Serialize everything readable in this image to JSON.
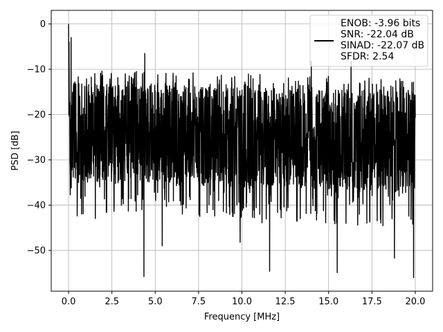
{
  "chart_data": {
    "type": "line",
    "title": "",
    "xlabel": "Frequency [MHz]",
    "ylabel": "PSD [dB]",
    "xlim": [
      -1.0,
      21.0
    ],
    "ylim": [
      -59.0,
      3.0
    ],
    "xticks": [
      0.0,
      2.5,
      5.0,
      7.5,
      10.0,
      12.5,
      15.0,
      17.5,
      20.0
    ],
    "xtick_labels": [
      "0.0",
      "2.5",
      "5.0",
      "7.5",
      "10.0",
      "12.5",
      "15.0",
      "17.5",
      "20.0"
    ],
    "yticks": [
      0,
      -10,
      -20,
      -30,
      -40,
      -50
    ],
    "ytick_labels": [
      "0",
      "−10",
      "−20",
      "−30",
      "−40",
      "−50"
    ],
    "grid": true,
    "legend_position": "top-right",
    "line_color": "#000000",
    "series": [
      {
        "name": "ENOB: -3.96 bits\nSNR: -22.04 dB\nSINAD: -22.07 dB\nSFDR: 2.54",
        "legend_lines": [
          "ENOB: -3.96 bits",
          "SNR: -22.04 dB",
          "SINAD: -22.07 dB",
          "SFDR: 2.54"
        ],
        "x_range": [
          0.0,
          20.0
        ],
        "num_points": 2048,
        "peak": {
          "x": 0.0,
          "y": 0.0
        },
        "typical_range": [
          -35,
          -12
        ],
        "noteworthy_minima": [
          {
            "x": 4.35,
            "y": -55.8
          },
          {
            "x": 5.4,
            "y": -49.0
          },
          {
            "x": 9.9,
            "y": -48.2
          },
          {
            "x": 11.6,
            "y": -54.6
          },
          {
            "x": 15.5,
            "y": -54.9
          },
          {
            "x": 18.8,
            "y": -51.7
          },
          {
            "x": 19.9,
            "y": -56.0
          }
        ],
        "noteworthy_maxima": [
          {
            "x": 4.4,
            "y": -6.5
          },
          {
            "x": 0.15,
            "y": -3.0
          },
          {
            "x": 14.0,
            "y": -8.2
          },
          {
            "x": 16.3,
            "y": -8.3
          }
        ]
      }
    ]
  }
}
